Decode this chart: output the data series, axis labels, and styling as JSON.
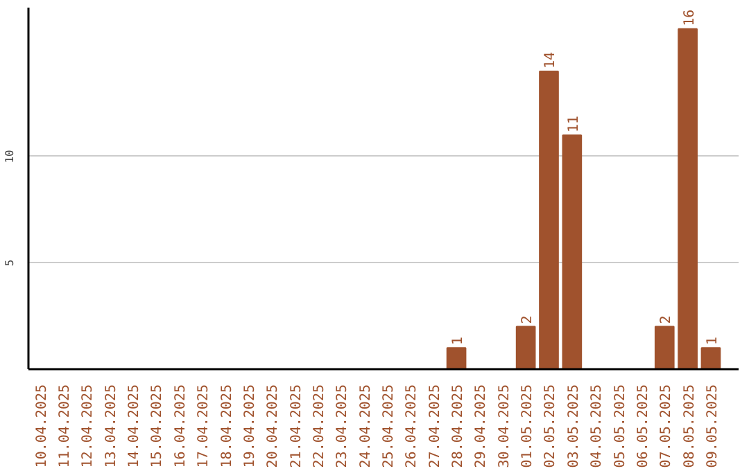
{
  "chart_data": {
    "type": "bar",
    "categories": [
      "10.04.2025",
      "11.04.2025",
      "12.04.2025",
      "13.04.2025",
      "14.04.2025",
      "15.04.2025",
      "16.04.2025",
      "17.04.2025",
      "18.04.2025",
      "19.04.2025",
      "20.04.2025",
      "21.04.2025",
      "22.04.2025",
      "23.04.2025",
      "24.04.2025",
      "25.04.2025",
      "26.04.2025",
      "27.04.2025",
      "28.04.2025",
      "29.04.2025",
      "30.04.2025",
      "01.05.2025",
      "02.05.2025",
      "03.05.2025",
      "04.05.2025",
      "05.05.2025",
      "06.05.2025",
      "07.05.2025",
      "08.05.2025",
      "09.05.2025"
    ],
    "values": [
      0,
      0,
      0,
      0,
      0,
      0,
      0,
      0,
      0,
      0,
      0,
      0,
      0,
      0,
      0,
      0,
      0,
      0,
      1,
      0,
      0,
      2,
      14,
      11,
      0,
      0,
      0,
      2,
      16,
      1
    ],
    "value_labels": [
      null,
      null,
      null,
      null,
      null,
      null,
      null,
      null,
      null,
      null,
      null,
      null,
      null,
      null,
      null,
      null,
      null,
      null,
      "1",
      null,
      null,
      "2",
      "14",
      "11",
      null,
      null,
      null,
      "2",
      "16",
      "1"
    ],
    "color": "#a0522d",
    "ylim": [
      0,
      17
    ],
    "yticks": [
      5,
      10
    ],
    "grid": "y"
  }
}
